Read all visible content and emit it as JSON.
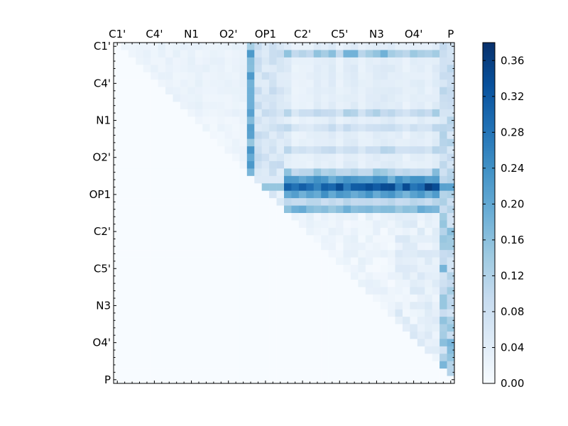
{
  "chart_data": {
    "type": "heatmap",
    "colormap": "Blues",
    "rows": 46,
    "cols": 46,
    "x_tick_labels": [
      "C1'",
      "C4'",
      "N1",
      "O2'",
      "OP1",
      "C2'",
      "C5'",
      "N3",
      "O4'",
      "P"
    ],
    "y_tick_labels": [
      "C1'",
      "C4'",
      "N1",
      "O2'",
      "OP1",
      "C2'",
      "C5'",
      "N3",
      "O4'",
      "P"
    ],
    "tick_label_cells": [
      0,
      5,
      10,
      15,
      20,
      25,
      30,
      35,
      40,
      45
    ],
    "colorbar": {
      "range": [
        0.0,
        0.38
      ],
      "ticks": [
        0.0,
        0.04,
        0.08,
        0.12,
        0.16,
        0.2,
        0.24,
        0.28,
        0.32,
        0.36
      ],
      "tick_labels": [
        "0.00",
        "0.04",
        "0.08",
        "0.12",
        "0.16",
        "0.20",
        "0.24",
        "0.28",
        "0.32",
        "0.36"
      ]
    },
    "grid": false,
    "colorbar_position": "right",
    "matrix_structure": "upper-triangular (values only where column > row)",
    "row_profiles": [
      {
        "row": 1,
        "cols_2_18": 0.03,
        "col_19": 0.14,
        "cols_20_22": 0.07,
        "cols_23_43": 0.13,
        "cols_44_45": 0.07
      },
      {
        "row": 9,
        "col_18": 0.26,
        "cols_23_43": 0.09,
        "col_44": 0.08
      },
      {
        "row": 18,
        "col_19": 0.05,
        "cols_23_43": 0.21,
        "cols_44_45": 0.12
      },
      {
        "row": 19,
        "cols_23_43": 0.3,
        "col_42": 0.36,
        "cols_44_45": 0.2
      },
      {
        "row": 20,
        "cols_23_43": 0.21,
        "cols_44_45": 0.1
      },
      {
        "row": 22,
        "cols_23_43": 0.17,
        "cols_44_45": 0.08
      },
      {
        "row": 24,
        "col_42": 0.05,
        "col_44": 0.12
      },
      {
        "row": 41,
        "col_44": 0.1
      },
      {
        "row": 43,
        "col_44": 0.05
      },
      {
        "row": 44,
        "col_45": 0.17
      }
    ]
  }
}
